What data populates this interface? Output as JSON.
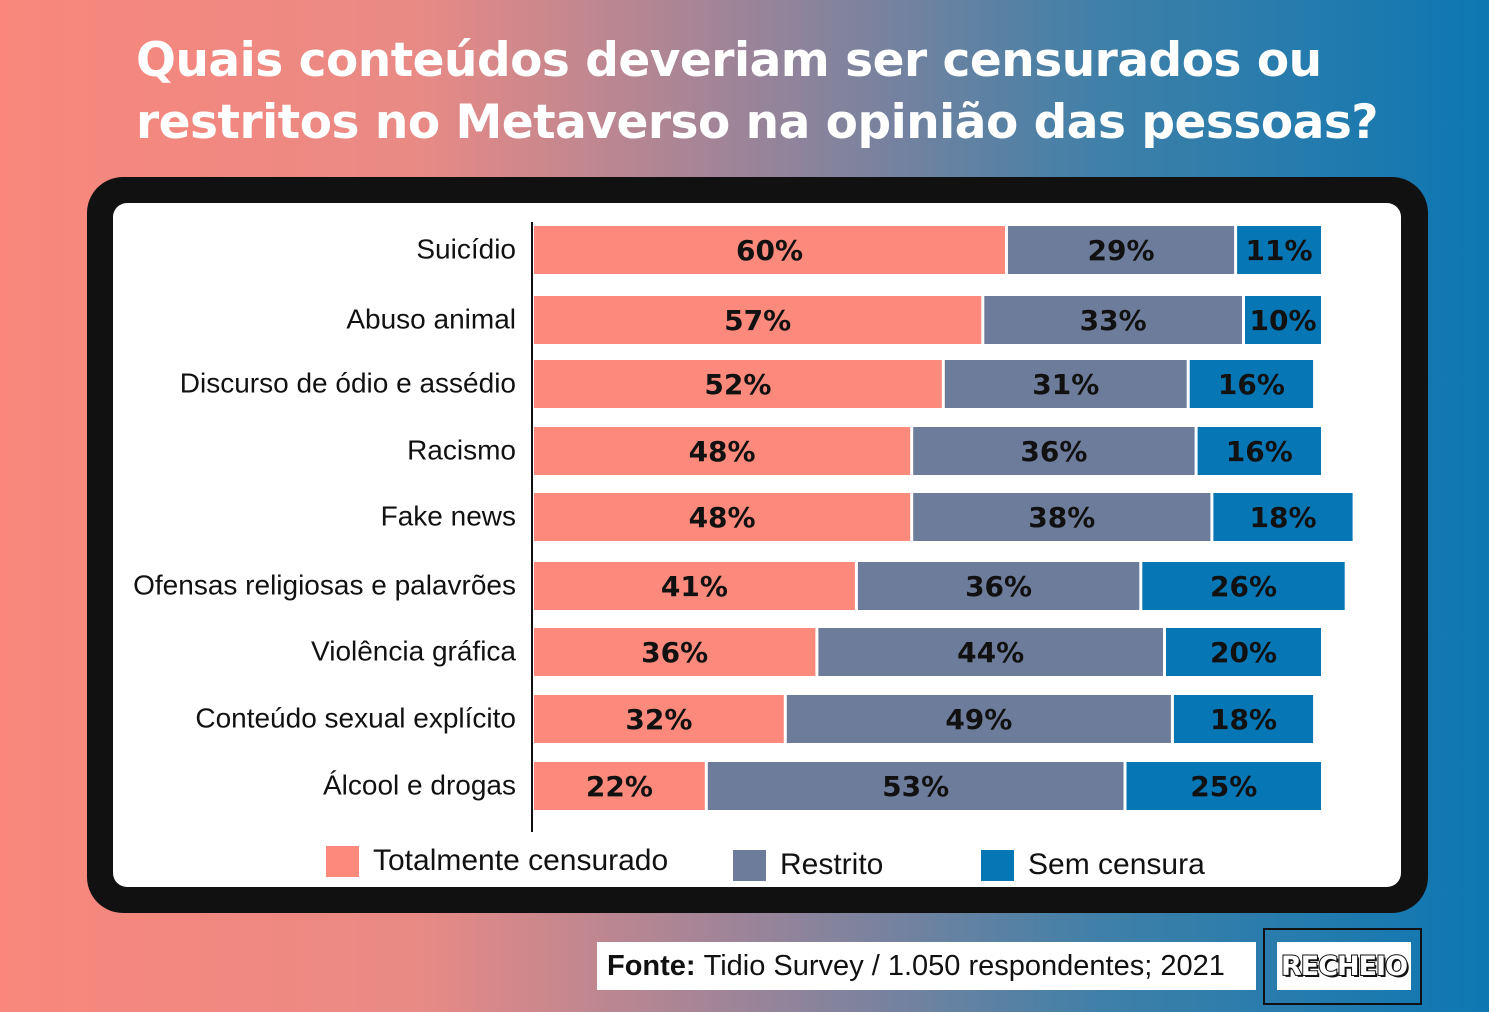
{
  "title": {
    "line1": "Quais conteúdos deveriam ser censurados ou",
    "line2": "restritos no Metaverso na opinião das pessoas?"
  },
  "colors": {
    "totalmente": "#fb8a7c",
    "restrito": "#6d7c9a",
    "sem_censura": "#0676b4"
  },
  "chart_data": {
    "type": "bar",
    "orientation": "horizontal",
    "stacked": true,
    "title": "Quais conteúdos deveriam ser censurados ou restritos no Metaverso na opinião das pessoas?",
    "categories": [
      "Suicídio",
      "Abuso animal",
      "Discurso de ódio e assédio",
      "Racismo",
      "Fake news",
      "Ofensas religiosas e palavrões",
      "Violência gráfica",
      "Conteúdo sexual explícito",
      "Álcool e drogas"
    ],
    "series": [
      {
        "name": "Totalmente censurado",
        "values": [
          60,
          57,
          52,
          48,
          48,
          41,
          36,
          32,
          22
        ],
        "labels": [
          "60%",
          "57%",
          "52%",
          "48%",
          "48%",
          "41%",
          "36%",
          "32%",
          "22%"
        ]
      },
      {
        "name": "Restrito",
        "values": [
          29,
          33,
          31,
          36,
          38,
          36,
          44,
          49,
          53
        ],
        "labels": [
          "29%",
          "33%",
          "31%",
          "36%",
          "38%",
          "36%",
          "44%",
          "49%",
          "53%"
        ]
      },
      {
        "name": "Sem censura",
        "values": [
          11,
          10,
          16,
          16,
          18,
          26,
          20,
          18,
          25
        ],
        "labels": [
          "11%",
          "10%",
          "16%",
          "16%",
          "18%",
          "26%",
          "20%",
          "18%",
          "25%"
        ]
      }
    ],
    "legend_position": "bottom",
    "grid": false
  },
  "legend": {
    "totalmente": "Totalmente censurado",
    "restrito": "Restrito",
    "sem_censura": "Sem censura"
  },
  "source": {
    "label": "Fonte:",
    "text": "Tidio Survey / 1.050 respondentes; 2021"
  },
  "logo": {
    "text": "RECHEIO"
  }
}
